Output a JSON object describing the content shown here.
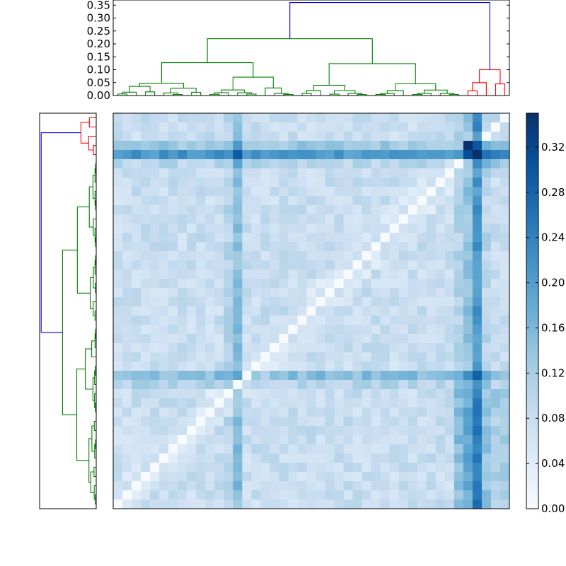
{
  "chart_data": {
    "type": "heatmap",
    "title": "",
    "description": "Clustered distance matrix with top and left dendrograms and a colorbar",
    "n": 43,
    "colormap": "Blues",
    "colors": {
      "cluster_a": "#008000",
      "cluster_b": "#ff0000",
      "root_link": "#0000ff",
      "cmap_low": "#f7fbff",
      "cmap_high": "#08306b"
    },
    "value_range": [
      0,
      0.35
    ],
    "top_dendrogram": {
      "ylim": [
        0,
        0.37
      ],
      "ytick_labels": [
        "0.00",
        "0.05",
        "0.10",
        "0.15",
        "0.20",
        "0.25",
        "0.30",
        "0.35"
      ],
      "yticks": [
        0,
        0.05,
        0.1,
        0.15,
        0.2,
        0.25,
        0.3,
        0.35
      ],
      "root_height": 0.36,
      "leaf_groups": {
        "green": 38,
        "red": 5
      }
    },
    "colorbar": {
      "range": [
        0,
        0.35
      ],
      "ticks": [
        0,
        0.04,
        0.08,
        0.12,
        0.16,
        0.2,
        0.24,
        0.28,
        0.32
      ],
      "tick_labels": [
        "0.00",
        "0.04",
        "0.08",
        "0.12",
        "0.16",
        "0.20",
        "0.24",
        "0.28",
        "0.32"
      ]
    },
    "heatmap_features": {
      "dark_columns": [
        13,
        38,
        39
      ],
      "dark_rows": [
        4,
        28
      ],
      "max_cell": {
        "row": 3,
        "col": 38,
        "value": 0.35
      },
      "diagonal_value": 0
    }
  }
}
